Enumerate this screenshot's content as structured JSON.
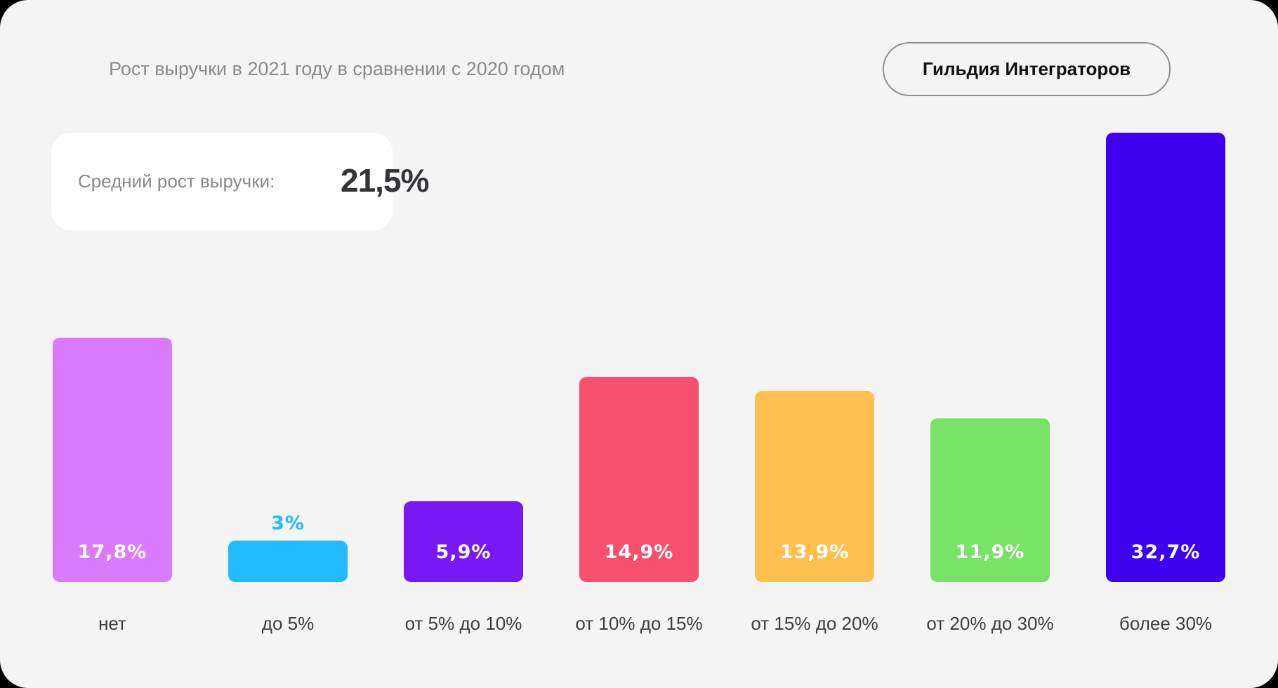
{
  "header": {
    "title": "Рост выручки в 2021 году в сравнении с 2020 годом",
    "brand": "Гильдия Интеграторов"
  },
  "summary": {
    "label": "Средний рост выручки:",
    "value": "21,5%"
  },
  "colors": {
    "background": "#f4f4f4",
    "card": "#ffffff",
    "title_text": "#8a8a8a",
    "axis_text": "#3d3d42"
  },
  "bars": [
    {
      "label": "нет",
      "value_label": "17,8%",
      "value": 17.8,
      "color": "#da7bfd"
    },
    {
      "label": "до 5%",
      "value_label": "3%",
      "value": 3,
      "color": "#22bbff"
    },
    {
      "label": "от 5% до 10%",
      "value_label": "5,9%",
      "value": 5.9,
      "color": "#7819f5"
    },
    {
      "label": "от 10% до 15%",
      "value_label": "14,9%",
      "value": 14.9,
      "color": "#f74f6e"
    },
    {
      "label": "от 15% до 20%",
      "value_label": "13,9%",
      "value": 13.9,
      "color": "#ffc04f"
    },
    {
      "label": "от 20% до 30%",
      "value_label": "11,9%",
      "value": 11.9,
      "color": "#77e266"
    },
    {
      "label": "более 30%",
      "value_label": "32,7%",
      "value": 32.7,
      "color": "#3d00ee"
    }
  ],
  "chart_data": {
    "type": "bar",
    "title": "Рост выручки в 2021 году в сравнении с 2020 годом",
    "subtitle": "Средний рост выручки: 21,5%",
    "categories": [
      "нет",
      "до 5%",
      "от 5% до 10%",
      "от 10% до 15%",
      "от 15% до 20%",
      "от 20% до 30%",
      "более 30%"
    ],
    "values": [
      17.8,
      3,
      5.9,
      14.9,
      13.9,
      11.9,
      32.7
    ],
    "value_labels": [
      "17,8%",
      "3%",
      "5,9%",
      "14,9%",
      "13,9%",
      "11,9%",
      "32,7%"
    ],
    "colors": [
      "#da7bfd",
      "#22bbff",
      "#7819f5",
      "#f74f6e",
      "#ffc04f",
      "#77e266",
      "#3d00ee"
    ],
    "xlabel": "",
    "ylabel": "",
    "unit": "%",
    "grid": false,
    "legend": null,
    "annotations": [
      "Гильдия Интеграторов"
    ]
  }
}
